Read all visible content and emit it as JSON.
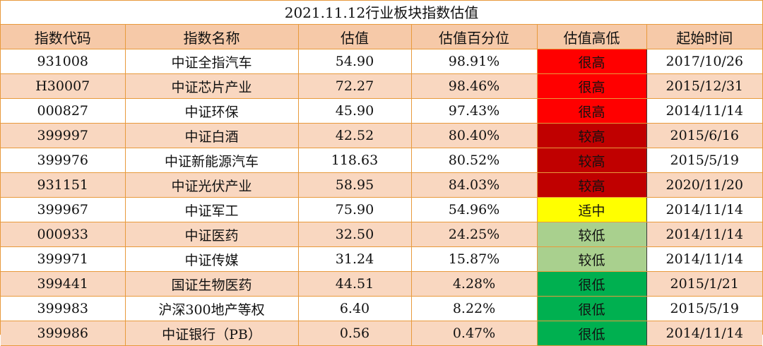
{
  "title": "2021.11.12行业板块指数估值",
  "headers": [
    "指数代码",
    "指数名称",
    "估值",
    "估值百分位",
    "估值高低",
    "起始时间"
  ],
  "rows": [
    {
      "code": "931008",
      "name": "中证全指汽车",
      "valuation": "54.90",
      "percentile": "98.91%",
      "level": "很高",
      "start": "2017/10/26"
    },
    {
      "code": "H30007",
      "name": "中证芯片产业",
      "valuation": "72.27",
      "percentile": "98.46%",
      "level": "很高",
      "start": "2015/12/31"
    },
    {
      "code": "000827",
      "name": "中证环保",
      "valuation": "45.90",
      "percentile": "97.43%",
      "level": "很高",
      "start": "2014/11/14"
    },
    {
      "code": "399997",
      "name": "中证白酒",
      "valuation": "42.52",
      "percentile": "80.40%",
      "level": "较高",
      "start": "2015/6/16"
    },
    {
      "code": "399976",
      "name": "中证新能源汽车",
      "valuation": "118.63",
      "percentile": "80.52%",
      "level": "较高",
      "start": "2015/5/19"
    },
    {
      "code": "931151",
      "name": "中证光伏产业",
      "valuation": "58.95",
      "percentile": "84.03%",
      "level": "较高",
      "start": "2020/11/20"
    },
    {
      "code": "399967",
      "name": "中证军工",
      "valuation": "75.90",
      "percentile": "54.96%",
      "level": "适中",
      "start": "2014/11/14"
    },
    {
      "code": "000933",
      "name": "中证医药",
      "valuation": "32.50",
      "percentile": "24.25%",
      "level": "较低",
      "start": "2014/11/14"
    },
    {
      "code": "399971",
      "name": "中证传媒",
      "valuation": "31.24",
      "percentile": "15.87%",
      "level": "较低",
      "start": "2014/11/14"
    },
    {
      "code": "399441",
      "name": "国证生物医药",
      "valuation": "44.51",
      "percentile": "4.28%",
      "level": "很低",
      "start": "2015/1/21"
    },
    {
      "code": "399983",
      "name": "沪深300地产等权",
      "valuation": "6.40",
      "percentile": "8.22%",
      "level": "很低",
      "start": "2015/5/19"
    },
    {
      "code": "399986",
      "name": "中证银行（PB）",
      "valuation": "0.56",
      "percentile": "0.47%",
      "level": "很低",
      "start": "2014/11/14"
    }
  ],
  "level_colors": {
    "很高": "#ff0000",
    "较高": "#c00000",
    "适中": "#ffff00",
    "较低": "#a9d08e",
    "很低": "#00b050"
  }
}
